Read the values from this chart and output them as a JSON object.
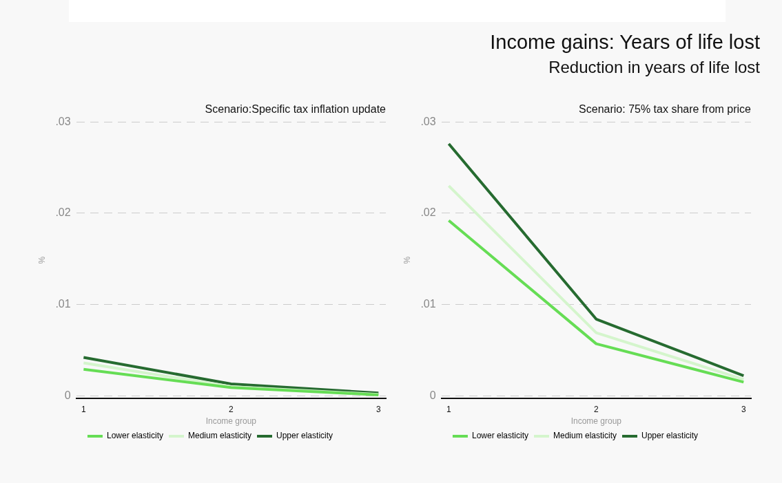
{
  "chart_data": [
    {
      "type": "other",
      "title": "Income gains: Years of life lost",
      "subtitle": "Reduction in years of life lost"
    },
    {
      "type": "line",
      "title": "Scenario:Specific tax inflation update",
      "xlabel": "Income group",
      "ylabel": "%",
      "x": [
        1,
        2,
        3
      ],
      "xlim": [
        0.95,
        3.05
      ],
      "xticks": [
        1,
        2,
        3
      ],
      "ylim": [
        -0.0003,
        0.03
      ],
      "yticks": [
        0,
        {
          "value": 0.01,
          "label": ".01"
        },
        {
          "value": 0.02,
          "label": ".02"
        },
        {
          "value": 0.03,
          "label": ".03"
        }
      ],
      "grid": "y",
      "legend": "bottom",
      "marker": "none",
      "line_style": "solid",
      "series": [
        {
          "name": "Lower elasticity",
          "color": "#66dd55",
          "values": [
            0.0029,
            0.0009,
            0.0001
          ]
        },
        {
          "name": "Medium elasticity",
          "color": "#d4f5cc",
          "values": [
            0.0036,
            0.001,
            0.00015
          ]
        },
        {
          "name": "Upper elasticity",
          "color": "#266b30",
          "values": [
            0.0042,
            0.0013,
            0.0003
          ]
        }
      ]
    },
    {
      "type": "line",
      "title": "Scenario: 75% tax share from price",
      "xlabel": "Income group",
      "ylabel": "%",
      "x": [
        1,
        2,
        3
      ],
      "xlim": [
        0.95,
        3.05
      ],
      "xticks": [
        1,
        2,
        3
      ],
      "ylim": [
        -0.0003,
        0.03
      ],
      "yticks": [
        0,
        {
          "value": 0.01,
          "label": ".01"
        },
        {
          "value": 0.02,
          "label": ".02"
        },
        {
          "value": 0.03,
          "label": ".03"
        }
      ],
      "grid": "y",
      "legend": "bottom",
      "marker": "none",
      "line_style": "solid",
      "series": [
        {
          "name": "Lower elasticity",
          "color": "#66dd55",
          "values": [
            0.0192,
            0.0057,
            0.0015
          ]
        },
        {
          "name": "Medium elasticity",
          "color": "#d4f5cc",
          "values": [
            0.023,
            0.0069,
            0.0018
          ]
        },
        {
          "name": "Upper elasticity",
          "color": "#266b30",
          "values": [
            0.0276,
            0.0084,
            0.0022
          ]
        }
      ]
    }
  ]
}
